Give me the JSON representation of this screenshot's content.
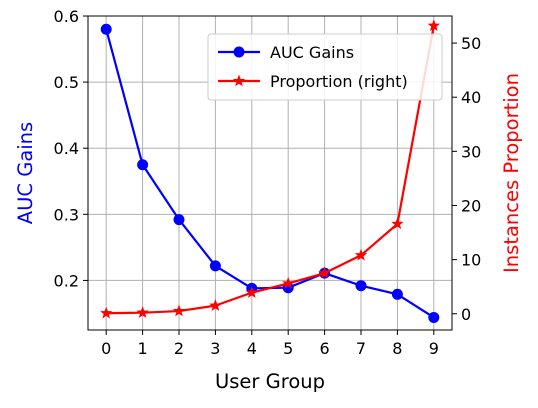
{
  "chart_data": {
    "type": "line",
    "x": [
      0,
      1,
      2,
      3,
      4,
      5,
      6,
      7,
      8,
      9
    ],
    "xlabel": "User Group",
    "ylabel_left": "AUC Gains",
    "ylabel_right": "Instances Proportion",
    "ylim_left": [
      0.125,
      0.6
    ],
    "ylim_right": [
      -3,
      55
    ],
    "yticks_left": [
      0.2,
      0.3,
      0.4,
      0.5,
      0.6
    ],
    "yticks_right": [
      0,
      10,
      20,
      30,
      40,
      50
    ],
    "grid": true,
    "legend_position": "top-right",
    "series": [
      {
        "name": "AUC Gains",
        "axis": "left",
        "color": "#0000ff",
        "marker": "circle",
        "values": [
          0.58,
          0.375,
          0.292,
          0.222,
          0.188,
          0.189,
          0.211,
          0.192,
          0.179,
          0.144
        ]
      },
      {
        "name": "Proportion (right)",
        "axis": "right",
        "color": "#ff0000",
        "marker": "star",
        "values": [
          0.1,
          0.2,
          0.5,
          1.5,
          3.9,
          5.6,
          7.5,
          10.8,
          16.6,
          53.2
        ]
      }
    ]
  }
}
